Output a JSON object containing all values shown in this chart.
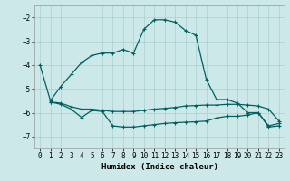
{
  "xlabel": "Humidex (Indice chaleur)",
  "xlim": [
    -0.5,
    23.5
  ],
  "ylim": [
    -7.5,
    -1.5
  ],
  "yticks": [
    -7,
    -6,
    -5,
    -4,
    -3,
    -2
  ],
  "xticks": [
    0,
    1,
    2,
    3,
    4,
    5,
    6,
    7,
    8,
    9,
    10,
    11,
    12,
    13,
    14,
    15,
    16,
    17,
    18,
    19,
    20,
    21,
    22,
    23
  ],
  "bg_color": "#cce8e8",
  "grid_color": "#aacfcf",
  "line_color": "#006060",
  "line1_x": [
    0,
    1,
    2,
    3,
    4,
    5,
    6,
    7,
    8,
    9,
    10,
    11,
    12,
    13,
    14,
    15,
    16,
    17,
    18,
    19,
    20,
    21,
    22,
    23
  ],
  "line1_y": [
    -4.0,
    -5.5,
    -4.9,
    -4.4,
    -3.9,
    -3.6,
    -3.5,
    -3.5,
    -3.35,
    -3.5,
    -2.5,
    -2.1,
    -2.1,
    -2.2,
    -2.55,
    -2.75,
    -4.6,
    -5.45,
    -5.45,
    -5.6,
    -6.0,
    -6.0,
    -6.6,
    -6.55
  ],
  "line2_x": [
    1,
    2,
    3,
    4,
    5,
    6,
    7,
    8,
    9,
    10,
    11,
    12,
    13,
    14,
    15,
    16,
    17,
    18,
    19,
    20,
    21,
    22,
    23
  ],
  "line2_y": [
    -5.55,
    -5.6,
    -5.75,
    -5.85,
    -5.85,
    -5.9,
    -5.95,
    -5.95,
    -5.95,
    -5.9,
    -5.85,
    -5.82,
    -5.78,
    -5.72,
    -5.7,
    -5.68,
    -5.68,
    -5.65,
    -5.65,
    -5.68,
    -5.72,
    -5.85,
    -6.35
  ],
  "line3_x": [
    1,
    2,
    3,
    4,
    5,
    6,
    7,
    8,
    9,
    10,
    11,
    12,
    13,
    14,
    15,
    16,
    17,
    18,
    19,
    20,
    21,
    22,
    23
  ],
  "line3_y": [
    -5.55,
    -5.65,
    -5.85,
    -6.2,
    -5.9,
    -5.95,
    -6.55,
    -6.6,
    -6.6,
    -6.55,
    -6.5,
    -6.45,
    -6.42,
    -6.4,
    -6.38,
    -6.35,
    -6.22,
    -6.15,
    -6.15,
    -6.1,
    -6.0,
    -6.55,
    -6.45
  ],
  "marker_size": 3.5,
  "line_width": 0.9,
  "tick_fontsize": 5.5,
  "xlabel_fontsize": 6.5
}
